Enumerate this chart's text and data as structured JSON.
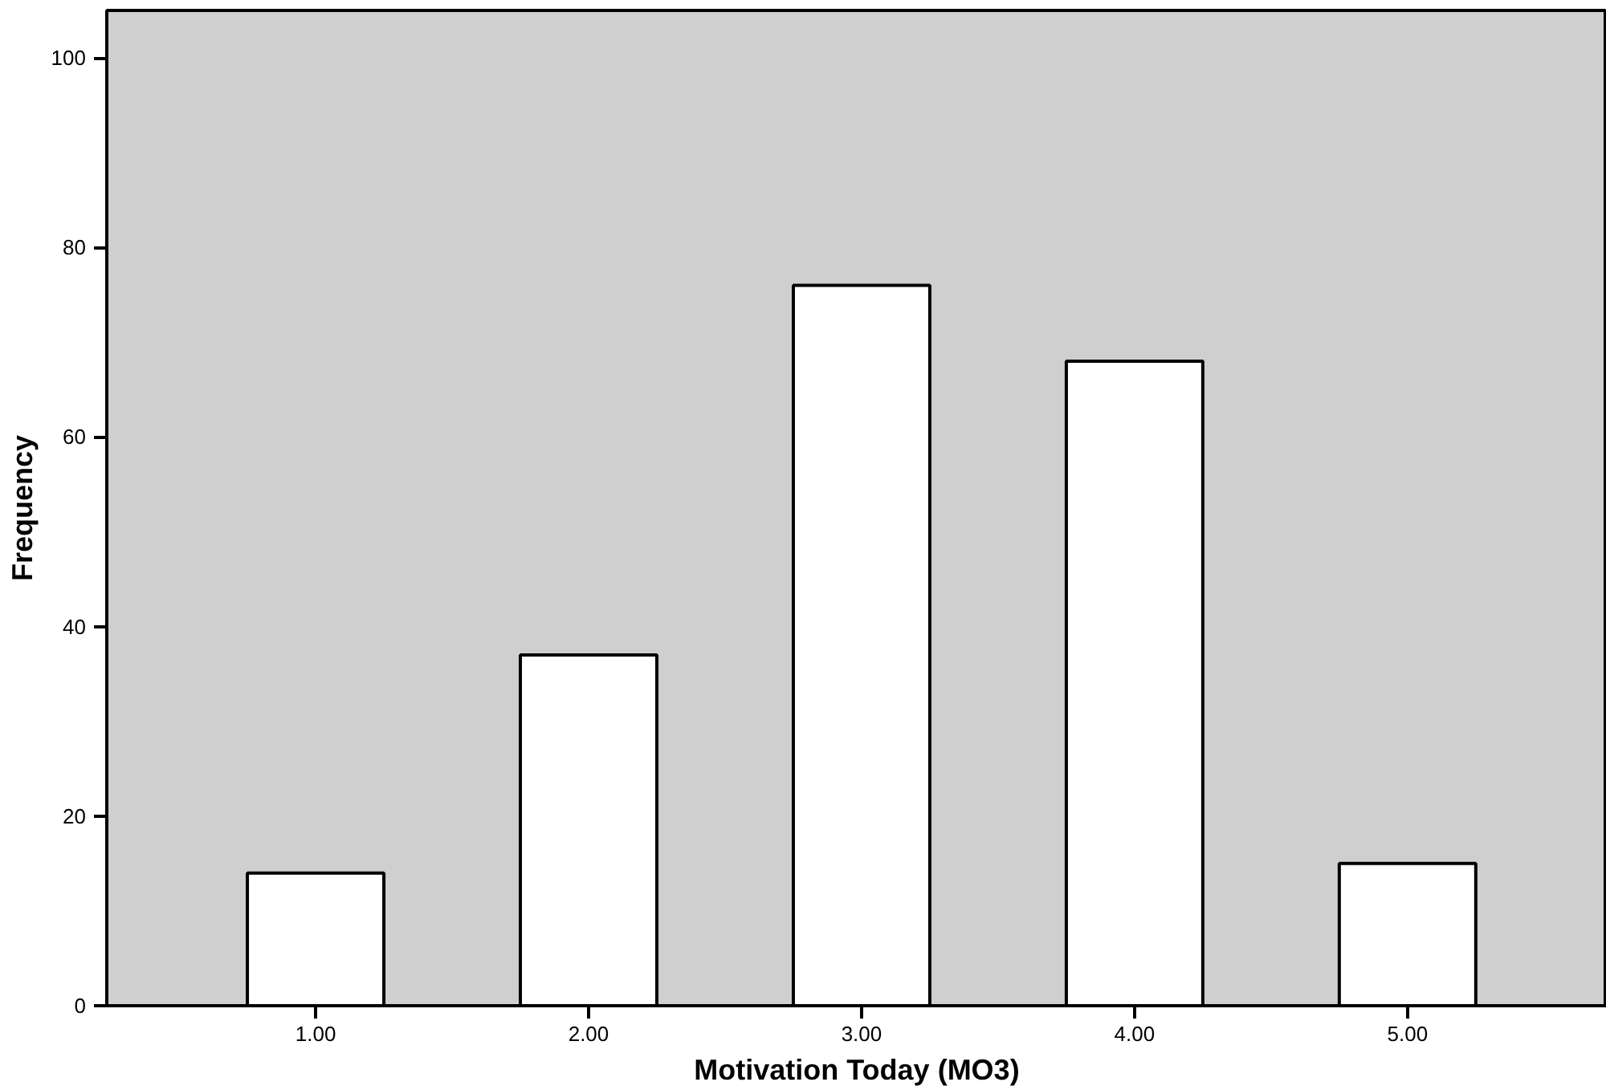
{
  "chart_data": {
    "type": "bar",
    "xlabel": "Motivation Today (MO3)",
    "ylabel": "Frequency",
    "categories": [
      "1.00",
      "2.00",
      "3.00",
      "4.00",
      "5.00"
    ],
    "values": [
      14,
      37,
      76,
      68,
      15
    ],
    "color": "#ffffff",
    "ylim": [
      0,
      105
    ],
    "yticks": [
      0,
      20,
      40,
      60,
      80,
      100
    ],
    "grid": false
  }
}
